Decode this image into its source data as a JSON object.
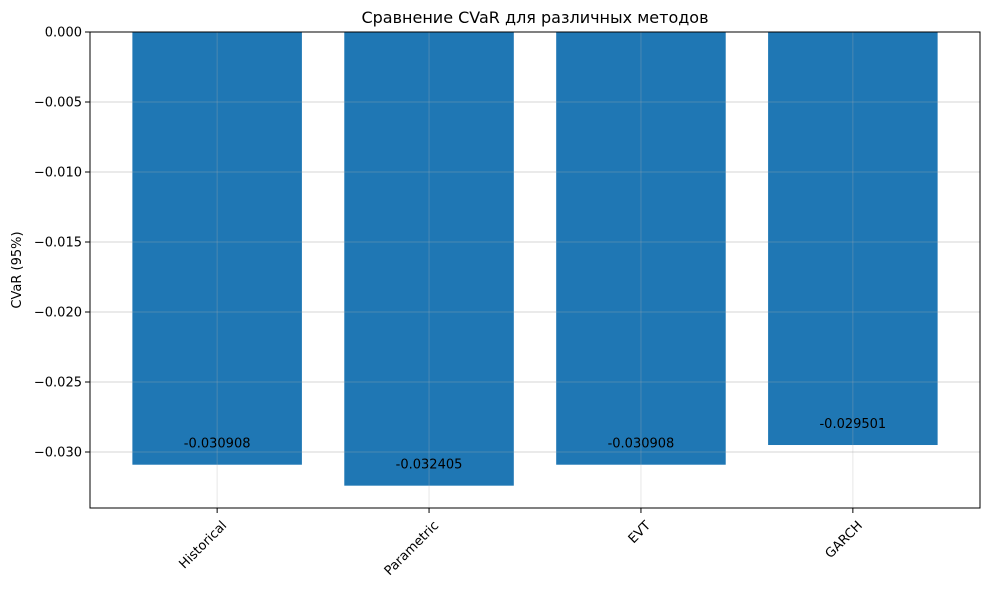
{
  "chart_data": {
    "type": "bar",
    "title": "Сравнение CVaR для различных методов",
    "xlabel": "",
    "ylabel": "CVaR (95%)",
    "categories": [
      "Historical",
      "Parametric",
      "EVT",
      "GARCH"
    ],
    "values": [
      -0.030908,
      -0.032405,
      -0.030908,
      -0.029501
    ],
    "value_labels": [
      "-0.030908",
      "-0.032405",
      "-0.030908",
      "-0.029501"
    ],
    "ylim": [
      -0.034,
      0.0
    ],
    "yticks": [
      0.0,
      -0.005,
      -0.01,
      -0.015,
      -0.02,
      -0.025,
      -0.03
    ],
    "ytick_labels": [
      "0.000",
      "−0.005",
      "−0.010",
      "−0.015",
      "−0.020",
      "−0.025",
      "−0.030"
    ],
    "grid": true,
    "bar_color": "#1f77b4",
    "xtick_rotation_deg": 45
  }
}
